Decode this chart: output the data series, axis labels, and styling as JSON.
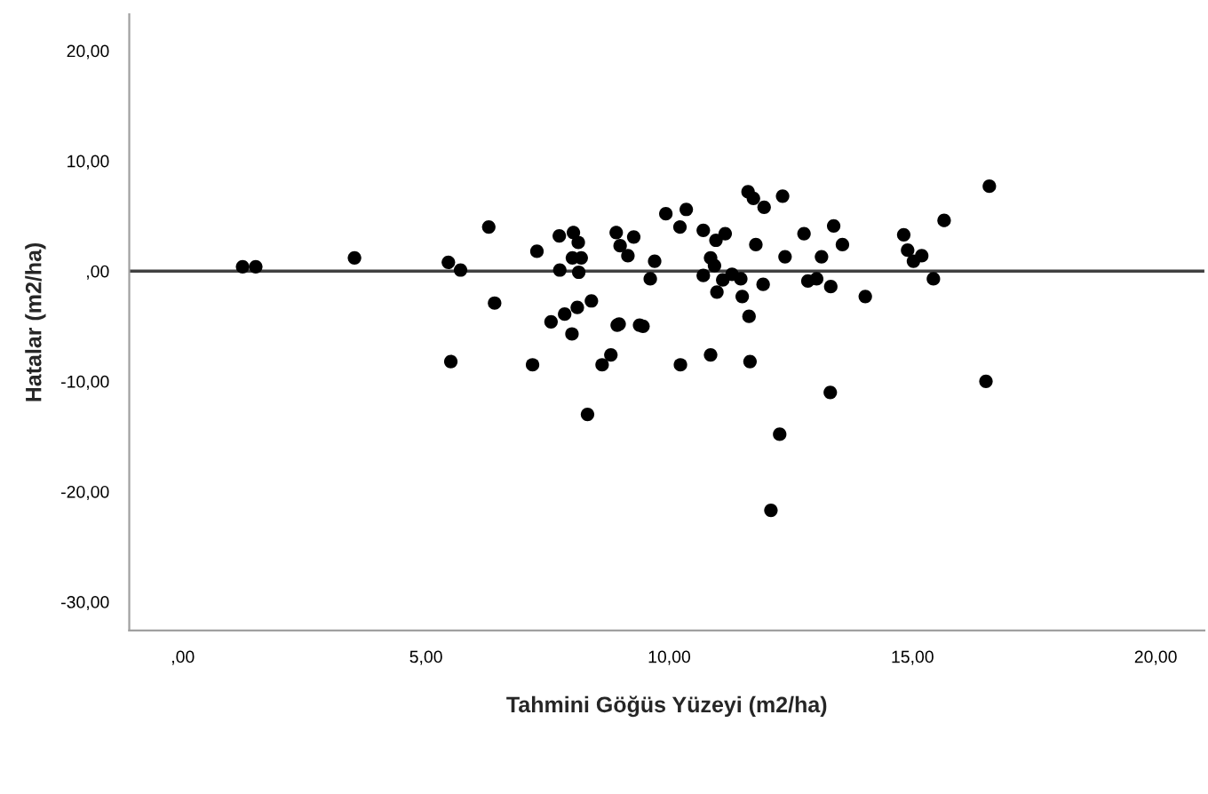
{
  "chart_data": {
    "type": "scatter",
    "xlabel": "Tahmini Göğüs Yüzeyi (m2/ha)",
    "ylabel": "Hatalar (m2/ha)",
    "x": [
      1.23,
      1.5,
      3.53,
      5.46,
      5.71,
      5.51,
      6.29,
      6.41,
      7.28,
      7.19,
      7.57,
      7.74,
      7.75,
      7.85,
      8.0,
      8.03,
      8.13,
      8.01,
      8.19,
      8.14,
      8.11,
      8.4,
      8.32,
      8.62,
      8.8,
      8.91,
      8.99,
      9.15,
      9.27,
      8.93,
      8.97,
      9.39,
      9.46,
      9.61,
      9.7,
      9.93,
      10.22,
      10.35,
      10.23,
      10.7,
      10.7,
      10.85,
      10.85,
      10.93,
      10.96,
      10.98,
      11.15,
      11.1,
      11.29,
      11.47,
      11.5,
      11.64,
      11.66,
      11.62,
      11.73,
      11.95,
      11.78,
      11.93,
      12.27,
      12.33,
      12.38,
      12.77,
      12.85,
      13.03,
      13.13,
      13.32,
      13.31,
      13.38,
      13.56,
      14.03,
      14.82,
      14.9,
      15.02,
      15.19,
      15.43,
      15.65,
      16.58,
      16.51,
      12.09
    ],
    "series": [
      {
        "color": "#000000",
        "values": [
          0.4,
          0.4,
          1.2,
          0.8,
          0.1,
          -8.2,
          4.0,
          -2.9,
          1.8,
          -8.5,
          -4.6,
          3.2,
          0.1,
          -3.9,
          -5.7,
          3.5,
          2.6,
          1.2,
          1.2,
          -0.1,
          -3.3,
          -2.7,
          -13.0,
          -8.5,
          -7.6,
          3.5,
          2.3,
          1.4,
          3.1,
          -4.9,
          -4.8,
          -4.9,
          -5.0,
          -0.7,
          0.9,
          5.2,
          4.0,
          5.6,
          -8.5,
          3.7,
          -0.4,
          1.2,
          -7.6,
          0.5,
          2.8,
          -1.9,
          3.4,
          -0.8,
          -0.3,
          -0.7,
          -2.3,
          -4.1,
          -8.2,
          7.2,
          6.6,
          5.8,
          2.4,
          -1.2,
          -14.8,
          6.8,
          1.3,
          3.4,
          -0.9,
          -0.7,
          1.3,
          -1.4,
          -11.0,
          4.1,
          2.4,
          -2.3,
          3.3,
          1.9,
          0.9,
          1.4,
          -0.7,
          4.6,
          7.7,
          -10.0,
          -21.7
        ]
      }
    ],
    "xlim": [
      -1.1,
      21.0
    ],
    "ylim": [
      -32.6,
      23.3
    ],
    "xticks": [
      {
        "value": 0,
        "label": ",00"
      },
      {
        "value": 5,
        "label": "5,00"
      },
      {
        "value": 10,
        "label": "10,00"
      },
      {
        "value": 15,
        "label": "15,00"
      },
      {
        "value": 20,
        "label": "20,00"
      }
    ],
    "yticks": [
      {
        "value": -30,
        "label": "-30,00"
      },
      {
        "value": -20,
        "label": "-20,00"
      },
      {
        "value": -10,
        "label": "-10,00"
      },
      {
        "value": 0,
        "label": ",00"
      },
      {
        "value": 10,
        "label": "10,00"
      },
      {
        "value": 20,
        "label": "20,00"
      }
    ],
    "ref_lines": [
      {
        "axis": "y",
        "value": 0,
        "color": "#404040"
      }
    ],
    "marker": "circle",
    "grid": false,
    "legend": false
  }
}
